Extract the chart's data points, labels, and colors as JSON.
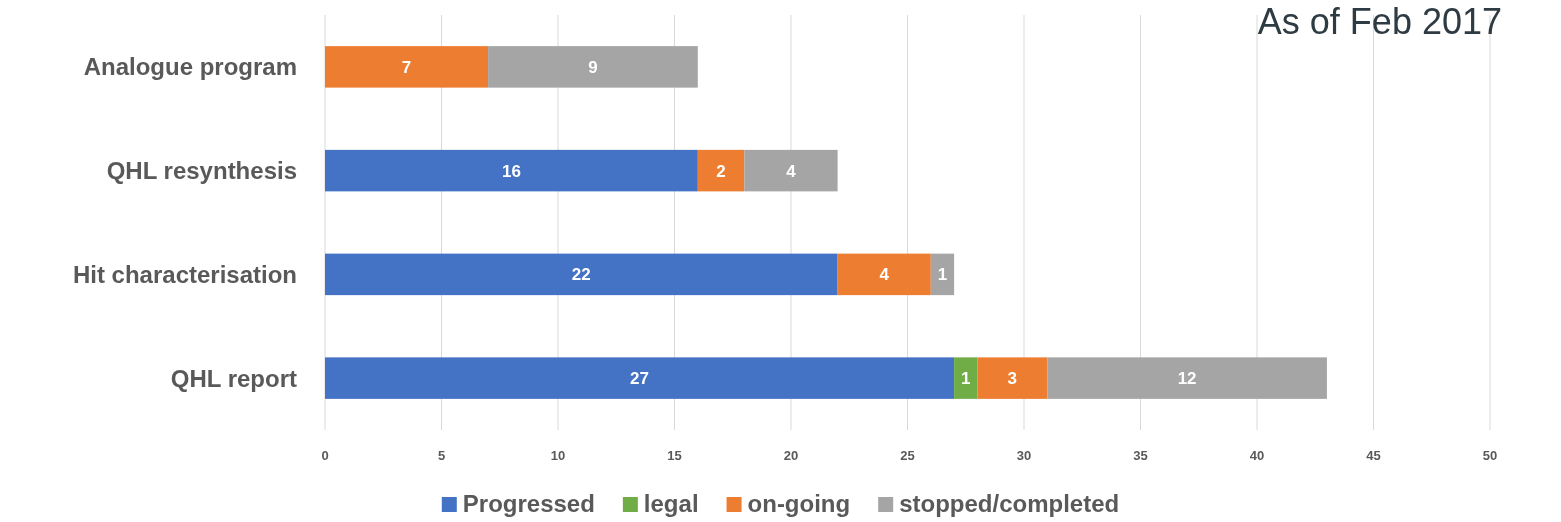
{
  "chart_data": {
    "type": "bar",
    "orientation": "horizontal",
    "stacked": true,
    "title": "As of Feb 2017",
    "categories": [
      "Analogue program",
      "QHL resynthesis",
      "Hit characterisation",
      "QHL report"
    ],
    "series": [
      {
        "name": "Progressed",
        "color": "#4472c4",
        "values": [
          null,
          16,
          22,
          27
        ]
      },
      {
        "name": "legal",
        "color": "#70ad47",
        "values": [
          null,
          null,
          null,
          1
        ]
      },
      {
        "name": "on-going",
        "color": "#ed7d31",
        "values": [
          7,
          2,
          4,
          3
        ]
      },
      {
        "name": "stopped/completed",
        "color": "#a5a5a5",
        "values": [
          9,
          4,
          1,
          12
        ]
      }
    ],
    "xlim": [
      0,
      50
    ],
    "xticks": [
      0,
      5,
      10,
      15,
      20,
      25,
      30,
      35,
      40,
      45,
      50
    ],
    "grid": "x",
    "legend": "bottom",
    "data_labels": true
  }
}
